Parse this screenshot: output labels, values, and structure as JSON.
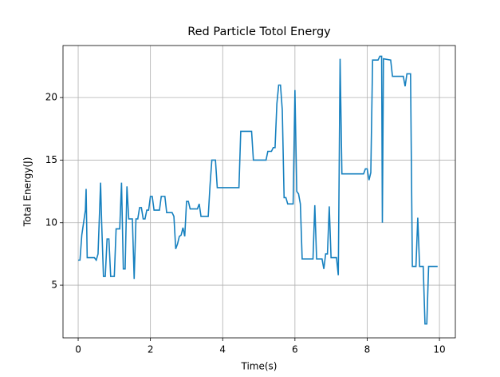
{
  "chart_data": {
    "type": "line",
    "title": "Red Particle Totol Energy",
    "xlabel": "Time(s)",
    "ylabel": "Total Energy(J)",
    "x": [
      0,
      0.05,
      0.1,
      0.15,
      0.2,
      0.22,
      0.25,
      0.45,
      0.5,
      0.55,
      0.6,
      0.62,
      0.65,
      0.7,
      0.75,
      0.8,
      0.85,
      0.9,
      1.0,
      1.05,
      1.15,
      1.2,
      1.25,
      1.3,
      1.35,
      1.4,
      1.5,
      1.55,
      1.6,
      1.65,
      1.7,
      1.75,
      1.8,
      1.85,
      1.9,
      1.95,
      2.0,
      2.05,
      2.1,
      2.25,
      2.3,
      2.4,
      2.45,
      2.6,
      2.65,
      2.7,
      2.75,
      2.8,
      2.85,
      2.9,
      2.95,
      3.0,
      3.05,
      3.1,
      3.3,
      3.35,
      3.4,
      3.6,
      3.65,
      3.7,
      3.8,
      3.85,
      4.45,
      4.5,
      4.8,
      4.85,
      5.2,
      5.25,
      5.35,
      5.4,
      5.45,
      5.5,
      5.55,
      5.6,
      5.65,
      5.7,
      5.75,
      5.8,
      5.95,
      6.0,
      6.05,
      6.1,
      6.15,
      6.2,
      6.5,
      6.55,
      6.6,
      6.75,
      6.8,
      6.85,
      6.9,
      6.95,
      7.0,
      7.15,
      7.2,
      7.25,
      7.3,
      7.9,
      7.95,
      8.0,
      8.05,
      8.1,
      8.15,
      8.3,
      8.35,
      8.4,
      8.42,
      8.45,
      8.65,
      8.7,
      9.0,
      9.05,
      9.1,
      9.2,
      9.25,
      9.35,
      9.4,
      9.45,
      9.55,
      9.6,
      9.65,
      9.7,
      9.95
    ],
    "series": [
      {
        "name": "Red Particle",
        "color": "#1680bf",
        "values": [
          7.0,
          7.0,
          9.0,
          10.0,
          11.0,
          12.7,
          7.2,
          7.2,
          7.0,
          7.5,
          11.5,
          13.2,
          10.0,
          5.7,
          5.7,
          8.7,
          8.7,
          5.7,
          5.7,
          9.5,
          9.5,
          13.2,
          6.3,
          6.3,
          12.9,
          10.3,
          10.3,
          5.5,
          10.3,
          10.3,
          11.2,
          11.2,
          10.3,
          10.3,
          11.0,
          11.0,
          12.1,
          12.1,
          11.0,
          11.0,
          12.1,
          12.1,
          10.8,
          10.8,
          10.5,
          7.9,
          8.3,
          8.9,
          9.0,
          9.6,
          8.9,
          11.7,
          11.7,
          11.1,
          11.1,
          11.5,
          10.5,
          10.5,
          13.0,
          15.0,
          15.0,
          12.8,
          12.8,
          17.3,
          17.3,
          15.0,
          15.0,
          15.7,
          15.7,
          16.0,
          16.0,
          19.5,
          21.0,
          21.0,
          19.0,
          12.0,
          12.0,
          11.5,
          11.5,
          20.6,
          12.5,
          12.3,
          11.5,
          7.1,
          7.1,
          11.4,
          7.1,
          7.1,
          6.3,
          7.5,
          7.5,
          11.3,
          7.2,
          7.2,
          5.8,
          23.1,
          13.9,
          13.9,
          14.3,
          14.3,
          13.4,
          14.0,
          23.0,
          23.0,
          23.3,
          23.3,
          10.0,
          23.1,
          23.0,
          21.7,
          21.7,
          20.9,
          21.9,
          21.9,
          6.5,
          6.5,
          10.4,
          6.5,
          6.5,
          1.9,
          1.9,
          6.5,
          6.5
        ]
      }
    ],
    "xlim": [
      -0.42,
      10.44
    ],
    "ylim": [
      0.79,
      24.16
    ],
    "xticks": [
      0,
      2,
      4,
      6,
      8,
      10
    ],
    "yticks": [
      5,
      10,
      15,
      20
    ],
    "grid": true
  }
}
